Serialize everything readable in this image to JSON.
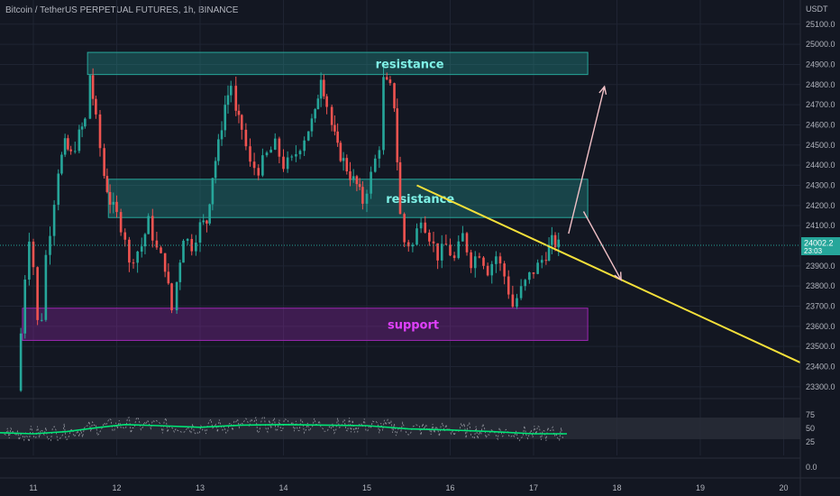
{
  "chart_data": {
    "type": "candlestick",
    "title": "Bitcoin / TetherUS PERPETUAL FUTURES, 1h, BINANCE",
    "currency": "USDT",
    "price_range": [
      23250,
      25220
    ],
    "y_ticks": [
      25100.0,
      25000.0,
      24900.0,
      24800.0,
      24700.0,
      24600.0,
      24500.0,
      24400.0,
      24300.0,
      24200.0,
      24100.0,
      23900.0,
      23800.0,
      23700.0,
      23600.0,
      23500.0,
      23400.0,
      23300.0
    ],
    "y_tick_labels": [
      "25100.0",
      "25000.0",
      "24900.0",
      "24800.0",
      "24700.0",
      "24600.0",
      "24500.0",
      "24400.0",
      "24300.0",
      "24200.0",
      "24100.0",
      "23900.0",
      "23800.0",
      "23700.0",
      "23600.0",
      "23500.0",
      "23400.0",
      "23300.0"
    ],
    "x_range_days": [
      10.6,
      20.2
    ],
    "x_ticks": [
      11,
      12,
      13,
      14,
      15,
      16,
      17,
      18,
      19,
      20
    ],
    "x_tick_labels": [
      "11",
      "12",
      "13",
      "14",
      "15",
      "16",
      "17",
      "18",
      "19",
      "20"
    ],
    "last_price": {
      "value": 24002.2,
      "label": "24002.2",
      "countdown": "23:03"
    },
    "zones": [
      {
        "label": "resistance",
        "top": 24960,
        "bottom": 24850,
        "x_start": 11.65,
        "x_end": 17.65,
        "fill": "#26a69a",
        "text_color": "#7ff0e6"
      },
      {
        "label": "resistance",
        "top": 24330,
        "bottom": 24140,
        "x_start": 11.9,
        "x_end": 17.65,
        "fill": "#26a69a",
        "text_color": "#7ff0e6"
      },
      {
        "label": "support",
        "top": 23690,
        "bottom": 23530,
        "x_start": 10.87,
        "x_end": 17.65,
        "fill": "#9c27b0",
        "text_color": "#e040fb"
      }
    ],
    "trendline": {
      "x": [
        15.6,
        20.2
      ],
      "y": [
        24300,
        23420
      ],
      "color": "#f5e03a"
    },
    "projections": [
      {
        "from": [
          17.42,
          24060
        ],
        "to": [
          17.85,
          24790
        ],
        "color": "#f2c1c7"
      },
      {
        "from": [
          17.6,
          24170
        ],
        "to": [
          18.05,
          23830
        ],
        "color": "#f2c1c7"
      }
    ],
    "candle_path": [
      [
        10.8,
        23280
      ],
      [
        10.9,
        23850
      ],
      [
        10.95,
        24050
      ],
      [
        11.0,
        23900
      ],
      [
        11.05,
        23620
      ],
      [
        11.1,
        23650
      ],
      [
        11.15,
        23950
      ],
      [
        11.2,
        24080
      ],
      [
        11.3,
        24380
      ],
      [
        11.38,
        24500
      ],
      [
        11.45,
        24450
      ],
      [
        11.55,
        24550
      ],
      [
        11.62,
        24620
      ],
      [
        11.68,
        24850
      ],
      [
        11.75,
        24620
      ],
      [
        11.85,
        24350
      ],
      [
        11.92,
        24220
      ],
      [
        12.0,
        24150
      ],
      [
        12.1,
        24050
      ],
      [
        12.15,
        23900
      ],
      [
        12.2,
        23950
      ],
      [
        12.3,
        24000
      ],
      [
        12.38,
        24120
      ],
      [
        12.48,
        23980
      ],
      [
        12.58,
        23900
      ],
      [
        12.66,
        23680
      ],
      [
        12.72,
        23820
      ],
      [
        12.8,
        24050
      ],
      [
        12.9,
        24000
      ],
      [
        13.0,
        24100
      ],
      [
        13.08,
        24120
      ],
      [
        13.15,
        24350
      ],
      [
        13.22,
        24500
      ],
      [
        13.3,
        24700
      ],
      [
        13.37,
        24800
      ],
      [
        13.43,
        24650
      ],
      [
        13.5,
        24580
      ],
      [
        13.6,
        24400
      ],
      [
        13.7,
        24380
      ],
      [
        13.8,
        24450
      ],
      [
        13.9,
        24500
      ],
      [
        14.0,
        24400
      ],
      [
        14.1,
        24420
      ],
      [
        14.2,
        24500
      ],
      [
        14.3,
        24580
      ],
      [
        14.38,
        24650
      ],
      [
        14.45,
        24850
      ],
      [
        14.52,
        24700
      ],
      [
        14.58,
        24600
      ],
      [
        14.65,
        24480
      ],
      [
        14.72,
        24420
      ],
      [
        14.8,
        24350
      ],
      [
        14.88,
        24300
      ],
      [
        14.95,
        24220
      ],
      [
        15.05,
        24350
      ],
      [
        15.15,
        24500
      ],
      [
        15.2,
        24820
      ],
      [
        15.28,
        24780
      ],
      [
        15.33,
        24700
      ],
      [
        15.4,
        24150
      ],
      [
        15.45,
        24020
      ],
      [
        15.55,
        24000
      ],
      [
        15.65,
        24150
      ],
      [
        15.75,
        24050
      ],
      [
        15.85,
        23950
      ],
      [
        15.95,
        24000
      ],
      [
        16.05,
        23930
      ],
      [
        16.15,
        24050
      ],
      [
        16.25,
        23920
      ],
      [
        16.35,
        23970
      ],
      [
        16.45,
        23880
      ],
      [
        16.55,
        23950
      ],
      [
        16.65,
        23850
      ],
      [
        16.75,
        23700
      ],
      [
        16.85,
        23780
      ],
      [
        16.95,
        23850
      ],
      [
        17.05,
        23900
      ],
      [
        17.15,
        23960
      ],
      [
        17.22,
        24020
      ],
      [
        17.3,
        24002
      ]
    ],
    "rsi": {
      "range": [
        0,
        100
      ],
      "ticks": [
        75,
        50,
        25
      ],
      "tick_labels": [
        "75",
        "50",
        "25"
      ],
      "bottom_label": "0.0",
      "band": [
        30,
        70
      ],
      "ma_color": "#00e676",
      "ma_points": [
        [
          10.6,
          42
        ],
        [
          11.0,
          40
        ],
        [
          11.4,
          44
        ],
        [
          11.8,
          52
        ],
        [
          12.1,
          57
        ],
        [
          12.5,
          55
        ],
        [
          13.0,
          52
        ],
        [
          13.5,
          56
        ],
        [
          14.0,
          57
        ],
        [
          14.5,
          56
        ],
        [
          15.0,
          55
        ],
        [
          15.5,
          49
        ],
        [
          16.0,
          47
        ],
        [
          16.5,
          44
        ],
        [
          17.0,
          40
        ],
        [
          17.4,
          40
        ]
      ]
    }
  }
}
